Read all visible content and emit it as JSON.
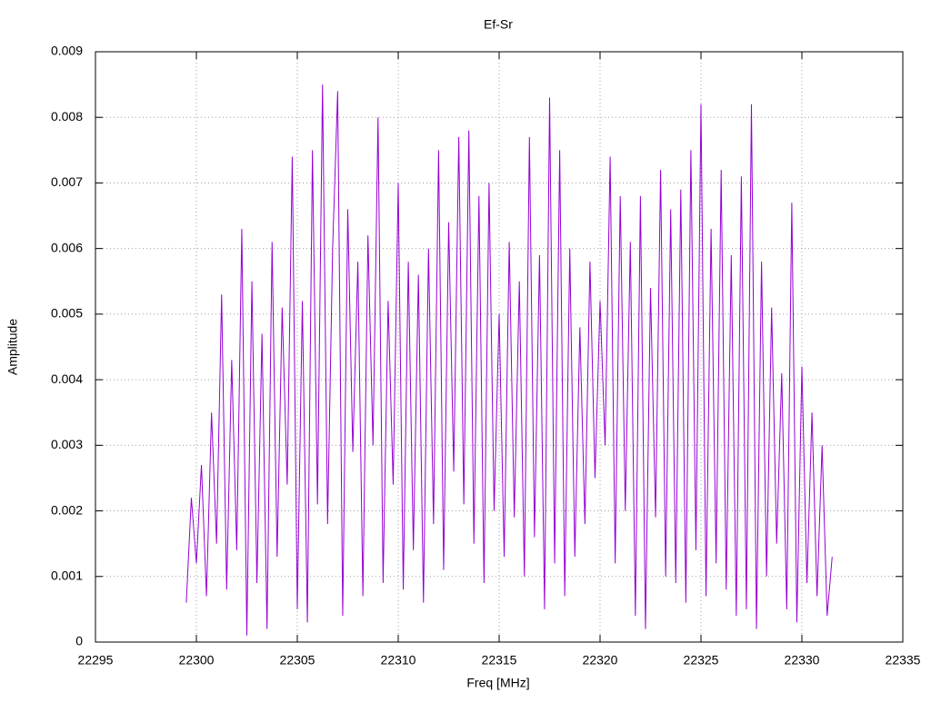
{
  "chart_data": {
    "type": "line",
    "title": "Ef-Sr",
    "x_label": "Freq [MHz]",
    "y_label": "Amplitude",
    "color": "#9400d3",
    "grid": true,
    "xlim": [
      22295,
      22335
    ],
    "xticks": [
      22295,
      22300,
      22305,
      22310,
      22315,
      22320,
      22325,
      22330,
      22335
    ],
    "ylim": [
      0,
      0.009
    ],
    "yticks": [
      0,
      0.001,
      0.002,
      0.003,
      0.004,
      0.005,
      0.006,
      0.007,
      0.008,
      0.009
    ],
    "x": [
      22299.5,
      22299.75,
      22300,
      22300.25,
      22300.5,
      22300.75,
      22301,
      22301.25,
      22301.5,
      22301.75,
      22302,
      22302.25,
      22302.5,
      22302.75,
      22303,
      22303.25,
      22303.5,
      22303.75,
      22304,
      22304.25,
      22304.5,
      22304.75,
      22305,
      22305.25,
      22305.5,
      22305.75,
      22306,
      22306.25,
      22306.5,
      22306.75,
      22307,
      22307.25,
      22307.5,
      22307.75,
      22308,
      22308.25,
      22308.5,
      22308.75,
      22309,
      22309.25,
      22309.5,
      22309.75,
      22310,
      22310.25,
      22310.5,
      22310.75,
      22311,
      22311.25,
      22311.5,
      22311.75,
      22312,
      22312.25,
      22312.5,
      22312.75,
      22313,
      22313.25,
      22313.5,
      22313.75,
      22314,
      22314.25,
      22314.5,
      22314.75,
      22315,
      22315.25,
      22315.5,
      22315.75,
      22316,
      22316.25,
      22316.5,
      22316.75,
      22317,
      22317.25,
      22317.5,
      22317.75,
      22318,
      22318.25,
      22318.5,
      22318.75,
      22319,
      22319.25,
      22319.5,
      22319.75,
      22320,
      22320.25,
      22320.5,
      22320.75,
      22321,
      22321.25,
      22321.5,
      22321.75,
      22322,
      22322.25,
      22322.5,
      22322.75,
      22323,
      22323.25,
      22323.5,
      22323.75,
      22324,
      22324.25,
      22324.5,
      22324.75,
      22325,
      22325.25,
      22325.5,
      22325.75,
      22326,
      22326.25,
      22326.5,
      22326.75,
      22327,
      22327.25,
      22327.5,
      22327.75,
      22328,
      22328.25,
      22328.5,
      22328.75,
      22329,
      22329.25,
      22329.5,
      22329.75,
      22330,
      22330.25,
      22330.5,
      22330.75,
      22331,
      22331.25,
      22331.5
    ],
    "values": [
      0.0006,
      0.0022,
      0.0012,
      0.0027,
      0.0007,
      0.0035,
      0.0015,
      0.0053,
      0.0008,
      0.0043,
      0.0014,
      0.0063,
      0.0001,
      0.0055,
      0.0009,
      0.0047,
      0.0002,
      0.0061,
      0.0013,
      0.0051,
      0.0024,
      0.0074,
      0.0005,
      0.0052,
      0.0003,
      0.0075,
      0.0021,
      0.0085,
      0.0018,
      0.006,
      0.0084,
      0.0004,
      0.0066,
      0.0029,
      0.0058,
      0.0007,
      0.0062,
      0.003,
      0.008,
      0.0009,
      0.0052,
      0.0024,
      0.007,
      0.0008,
      0.0058,
      0.0014,
      0.0056,
      0.0006,
      0.006,
      0.0018,
      0.0075,
      0.0011,
      0.0064,
      0.0026,
      0.0077,
      0.0021,
      0.0078,
      0.0015,
      0.0068,
      0.0009,
      0.007,
      0.002,
      0.005,
      0.0013,
      0.0061,
      0.0019,
      0.0055,
      0.001,
      0.0077,
      0.0016,
      0.0059,
      0.0005,
      0.0083,
      0.0012,
      0.0075,
      0.0007,
      0.006,
      0.0013,
      0.0048,
      0.0018,
      0.0058,
      0.0025,
      0.0052,
      0.003,
      0.0074,
      0.0012,
      0.0068,
      0.002,
      0.0061,
      0.0004,
      0.0068,
      0.0002,
      0.0054,
      0.0019,
      0.0072,
      0.001,
      0.0066,
      0.0009,
      0.0069,
      0.0006,
      0.0075,
      0.0014,
      0.0082,
      0.0007,
      0.0063,
      0.0012,
      0.0072,
      0.0008,
      0.0059,
      0.0004,
      0.0071,
      0.0005,
      0.0082,
      0.0002,
      0.0058,
      0.001,
      0.0051,
      0.0015,
      0.0041,
      0.0005,
      0.0067,
      0.0003,
      0.0042,
      0.0009,
      0.0035,
      0.0007,
      0.003,
      0.0004,
      0.0013
    ]
  }
}
